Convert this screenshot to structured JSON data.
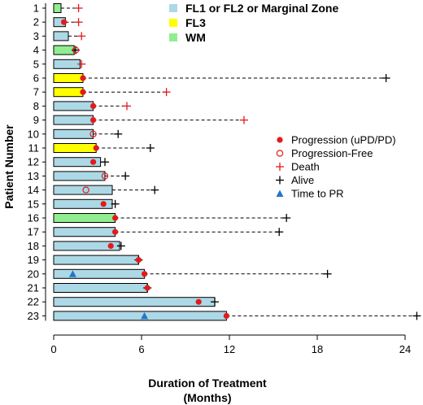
{
  "chart_data": {
    "type": "swimmer",
    "xlabel": "Duration of Treatment",
    "xlabel_line2": "(Months)",
    "ylabel": "Patient Number",
    "xlim": [
      0,
      25
    ],
    "xticks": [
      0,
      6,
      12,
      18,
      24
    ],
    "colors": {
      "FL": "#add8e6",
      "FL3": "#ffff00",
      "WM": "#90ee90",
      "progression": "#e31a1c",
      "death": "#e31a1c",
      "alive": "#000000",
      "pr": "#1f78c8",
      "dashed": "#000000"
    },
    "histology_legend": [
      {
        "key": "FL",
        "label": "FL1 or FL2 or Marginal Zone"
      },
      {
        "key": "FL3",
        "label": "FL3"
      },
      {
        "key": "WM",
        "label": "WM"
      }
    ],
    "event_legend": [
      {
        "key": "progression",
        "label": "Progression (uPD/PD)"
      },
      {
        "key": "progression_free",
        "label": "Progression-Free"
      },
      {
        "key": "death",
        "label": "Death"
      },
      {
        "key": "alive",
        "label": "Alive"
      },
      {
        "key": "pr",
        "label": "Time to PR"
      }
    ],
    "patients": [
      {
        "id": "1",
        "histology": "WM",
        "duration": 0.5,
        "prog": null,
        "prog_free": null,
        "pr": null,
        "outcome": "death",
        "followup": 1.7
      },
      {
        "id": "2",
        "histology": "FL",
        "duration": 0.8,
        "prog": 0.7,
        "prog_free": null,
        "pr": null,
        "outcome": "death",
        "followup": 1.7
      },
      {
        "id": "3",
        "histology": "FL",
        "duration": 1.0,
        "prog": null,
        "prog_free": null,
        "pr": null,
        "outcome": "death",
        "followup": 1.9
      },
      {
        "id": "4",
        "histology": "WM",
        "duration": 1.4,
        "prog": null,
        "prog_free": 1.5,
        "pr": null,
        "outcome": "alive",
        "followup": 1.5
      },
      {
        "id": "5",
        "histology": "FL",
        "duration": 1.8,
        "prog": null,
        "prog_free": null,
        "pr": null,
        "outcome": "death",
        "followup": 1.9
      },
      {
        "id": "6",
        "histology": "FL3",
        "duration": 2.0,
        "prog": 2.0,
        "prog_free": null,
        "pr": null,
        "outcome": "alive",
        "followup": 22.7
      },
      {
        "id": "7",
        "histology": "FL3",
        "duration": 2.0,
        "prog": 2.0,
        "prog_free": null,
        "pr": null,
        "outcome": "death",
        "followup": 7.7
      },
      {
        "id": "8",
        "histology": "FL",
        "duration": 2.7,
        "prog": 2.7,
        "prog_free": null,
        "pr": null,
        "outcome": "death",
        "followup": 5.0
      },
      {
        "id": "9",
        "histology": "FL",
        "duration": 2.7,
        "prog": 2.7,
        "prog_free": null,
        "pr": null,
        "outcome": "death",
        "followup": 13.0
      },
      {
        "id": "10",
        "histology": "FL",
        "duration": 2.7,
        "prog": null,
        "prog_free": 2.7,
        "pr": null,
        "outcome": "alive",
        "followup": 4.4
      },
      {
        "id": "11",
        "histology": "FL3",
        "duration": 2.9,
        "prog": 2.9,
        "prog_free": null,
        "pr": null,
        "outcome": "alive",
        "followup": 6.6
      },
      {
        "id": "12",
        "histology": "FL",
        "duration": 3.2,
        "prog": 2.7,
        "prog_free": null,
        "pr": null,
        "outcome": "alive",
        "followup": 3.5
      },
      {
        "id": "13",
        "histology": "FL",
        "duration": 3.5,
        "prog": null,
        "prog_free": 3.5,
        "pr": null,
        "outcome": "alive",
        "followup": 4.9
      },
      {
        "id": "14",
        "histology": "FL",
        "duration": 4.0,
        "prog": null,
        "prog_free": 2.2,
        "pr": null,
        "outcome": "alive",
        "followup": 6.9
      },
      {
        "id": "15",
        "histology": "FL",
        "duration": 4.0,
        "prog": 3.4,
        "prog_free": null,
        "pr": null,
        "outcome": "alive",
        "followup": 4.2
      },
      {
        "id": "16",
        "histology": "WM",
        "duration": 4.2,
        "prog": 4.2,
        "prog_free": null,
        "pr": null,
        "outcome": "alive",
        "followup": 15.9
      },
      {
        "id": "17",
        "histology": "FL",
        "duration": 4.2,
        "prog": 4.2,
        "prog_free": null,
        "pr": null,
        "outcome": "alive",
        "followup": 15.4
      },
      {
        "id": "18",
        "histology": "FL",
        "duration": 4.5,
        "prog": 3.9,
        "prog_free": null,
        "pr": null,
        "outcome": "alive",
        "followup": 4.6
      },
      {
        "id": "19",
        "histology": "FL",
        "duration": 5.8,
        "prog": 5.8,
        "prog_free": null,
        "pr": null,
        "outcome": "alive",
        "followup": 5.8
      },
      {
        "id": "20",
        "histology": "FL",
        "duration": 6.2,
        "prog": 6.2,
        "prog_free": null,
        "pr": 1.3,
        "outcome": "alive",
        "followup": 18.7
      },
      {
        "id": "21",
        "histology": "FL",
        "duration": 6.4,
        "prog": 6.4,
        "prog_free": null,
        "pr": null,
        "outcome": "alive",
        "followup": 6.4
      },
      {
        "id": "22",
        "histology": "FL",
        "duration": 11.0,
        "prog": 9.9,
        "prog_free": null,
        "pr": null,
        "outcome": "alive",
        "followup": 11.0
      },
      {
        "id": "23",
        "histology": "FL",
        "duration": 11.8,
        "prog": 11.8,
        "prog_free": null,
        "pr": 6.2,
        "outcome": "alive",
        "followup": 24.8
      }
    ]
  }
}
